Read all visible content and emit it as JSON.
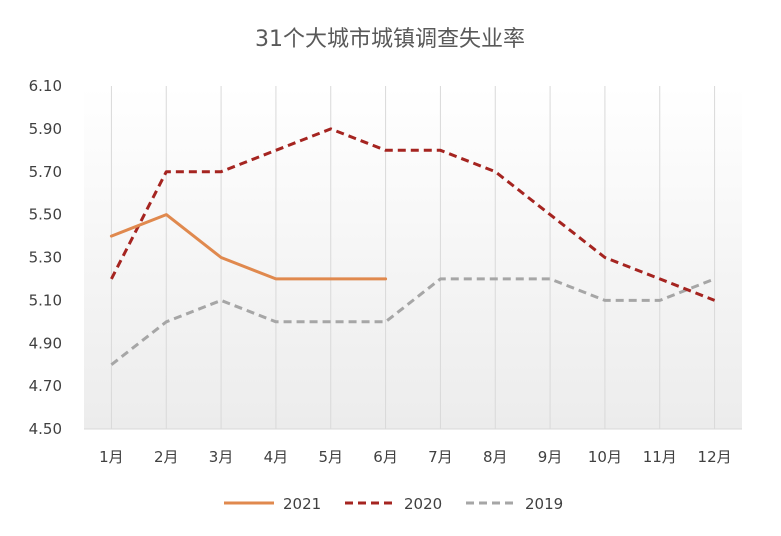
{
  "chart_data": {
    "type": "line",
    "title": "31个大城市城镇调查失业率",
    "xlabel": "",
    "ylabel": "",
    "categories": [
      "1月",
      "2月",
      "3月",
      "4月",
      "5月",
      "6月",
      "7月",
      "8月",
      "9月",
      "10月",
      "11月",
      "12月"
    ],
    "ylim": [
      4.5,
      6.1
    ],
    "yticks": [
      "4.50",
      "4.70",
      "4.90",
      "5.10",
      "5.30",
      "5.50",
      "5.70",
      "5.90",
      "6.10"
    ],
    "grid": "vertical",
    "legend_position": "bottom",
    "series": [
      {
        "name": "2021",
        "color": "#E0894E",
        "style": "solid",
        "values": [
          5.4,
          5.5,
          5.3,
          5.2,
          5.2,
          5.2,
          null,
          null,
          null,
          null,
          null,
          null
        ]
      },
      {
        "name": "2020",
        "color": "#A52420",
        "style": "dashed",
        "values": [
          5.2,
          5.7,
          5.7,
          5.8,
          5.9,
          5.8,
          5.8,
          5.7,
          5.5,
          5.3,
          5.2,
          5.1
        ]
      },
      {
        "name": "2019",
        "color": "#A6A6A6",
        "style": "dashed",
        "values": [
          4.8,
          5.0,
          5.1,
          5.0,
          5.0,
          5.0,
          5.2,
          5.2,
          5.2,
          5.1,
          5.1,
          5.2
        ]
      }
    ]
  }
}
